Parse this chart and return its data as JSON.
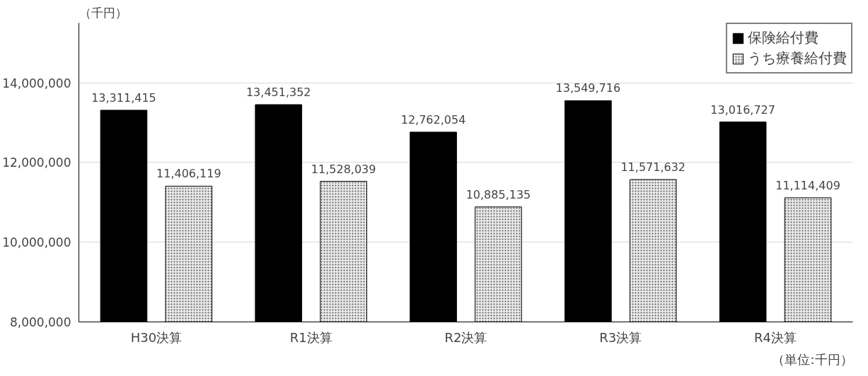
{
  "chart_data": {
    "type": "bar",
    "ylabel": "（千円）",
    "categories": [
      "H30決算",
      "R1決算",
      "R2決算",
      "R3決算",
      "R4決算"
    ],
    "series": [
      {
        "name": "保険給付費",
        "color": "#000000",
        "values": [
          13311415,
          13451352,
          12762054,
          13549716,
          13016727
        ],
        "value_labels": [
          "13,311,415",
          "13,451,352",
          "12,762,054",
          "13,549,716",
          "13,016,727"
        ]
      },
      {
        "name": "うち療養給付費",
        "color": "#e8e8e8",
        "values": [
          11406119,
          11528039,
          10885135,
          11571632,
          11114409
        ],
        "value_labels": [
          "11,406,119",
          "11,528,039",
          "10,885,135",
          "11,571,632",
          "11,114,409"
        ]
      }
    ],
    "ylim": [
      8000000,
      15500000
    ],
    "yticks": [
      {
        "value": 8000000,
        "label": "8,000,000"
      },
      {
        "value": 10000000,
        "label": "10,000,000"
      },
      {
        "value": 12000000,
        "label": "12,000,000"
      },
      {
        "value": 14000000,
        "label": "14,000,000"
      }
    ],
    "grid": "y",
    "legend": "top right",
    "annotations": [
      "（単位:千円）"
    ]
  }
}
